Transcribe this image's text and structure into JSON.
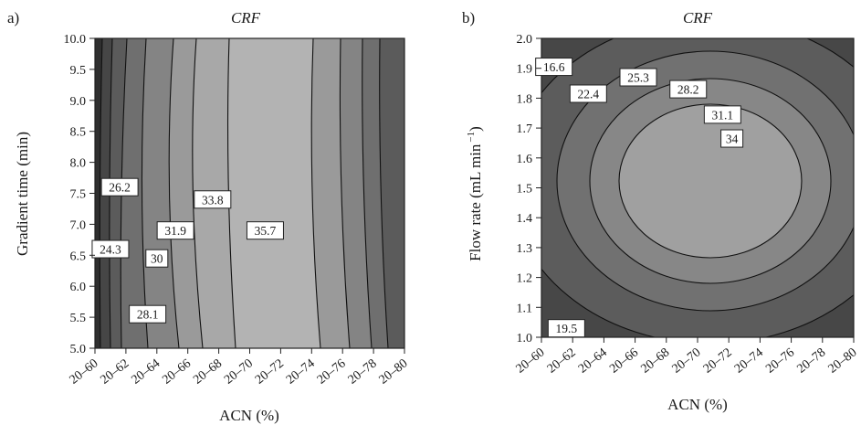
{
  "chart_data": [
    {
      "panel_label": "a)",
      "type": "contour",
      "title": "CRF",
      "xlabel": "ACN (%)",
      "ylabel": "Gradient time (min)",
      "ylim": [
        5.0,
        10.0
      ],
      "x_categories": [
        "20–60",
        "20–62",
        "20–64",
        "20–66",
        "20–68",
        "20–70",
        "20–72",
        "20–74",
        "20–76",
        "20–78",
        "20–80"
      ],
      "y_ticks": [
        "5.0",
        "5.5",
        "6.0",
        "6.5",
        "7.0",
        "7.5",
        "8.0",
        "8.5",
        "9.0",
        "9.5",
        "10.0"
      ],
      "contour_labels": [
        {
          "text": "26.2",
          "x": 0.8,
          "y": 7.6
        },
        {
          "text": "24.3",
          "x": 0.5,
          "y": 6.6
        },
        {
          "text": "31.9",
          "x": 2.6,
          "y": 6.9
        },
        {
          "text": "30",
          "x": 2.0,
          "y": 6.45
        },
        {
          "text": "28.1",
          "x": 1.7,
          "y": 5.55
        },
        {
          "text": "33.8",
          "x": 3.8,
          "y": 7.4
        },
        {
          "text": "35.7",
          "x": 5.5,
          "y": 6.9
        }
      ],
      "band_colors": [
        "#2f2f2f",
        "#464646",
        "#5b5b5b",
        "#6f6f6f",
        "#848484",
        "#9a9a9a",
        "#b3b3b3"
      ]
    },
    {
      "panel_label": "b)",
      "type": "contour",
      "title": "CRF",
      "xlabel": "ACN (%)",
      "ylabel": "Flow rate (mL min",
      "ylabel_sup": "−1",
      "ylim": [
        1.0,
        2.0
      ],
      "x_categories": [
        "20–60",
        "20–62",
        "20–64",
        "20–66",
        "20–68",
        "20–70",
        "20–72",
        "20–74",
        "20–76",
        "20–78",
        "20–80"
      ],
      "y_ticks": [
        "1.0",
        "1.1",
        "1.2",
        "1.3",
        "1.4",
        "1.5",
        "1.6",
        "1.7",
        "1.8",
        "1.9",
        "2.0"
      ],
      "contour_labels": [
        {
          "text": "16.6",
          "x": 0.4,
          "y": 1.905
        },
        {
          "text": "22.4",
          "x": 1.5,
          "y": 1.815
        },
        {
          "text": "25.3",
          "x": 3.1,
          "y": 1.87
        },
        {
          "text": "28.2",
          "x": 4.7,
          "y": 1.83
        },
        {
          "text": "31.1",
          "x": 5.8,
          "y": 1.745
        },
        {
          "text": "34",
          "x": 6.1,
          "y": 1.665
        },
        {
          "text": "19.5",
          "x": 0.8,
          "y": 1.03
        }
      ],
      "band_colors": [
        "#1f1f1f",
        "#333333",
        "#474747",
        "#5c5c5c",
        "#717171",
        "#878787",
        "#a0a0a0"
      ]
    }
  ]
}
